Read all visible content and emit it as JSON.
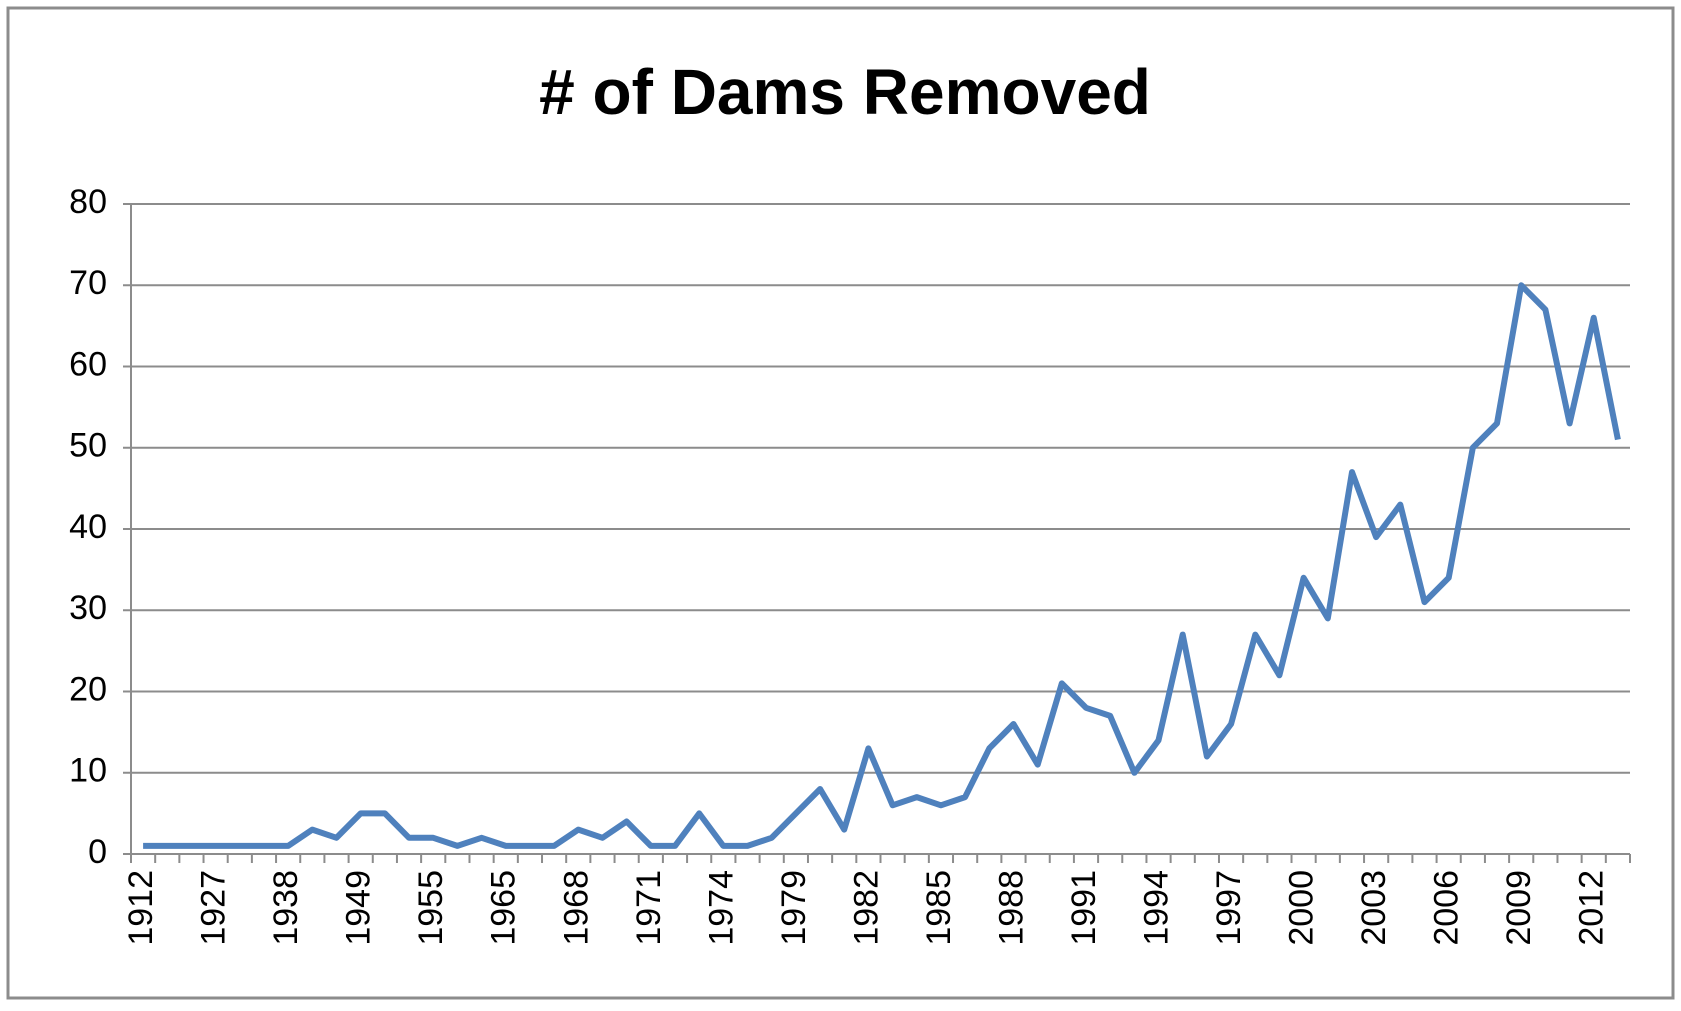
{
  "chart_data": {
    "type": "line",
    "title": "# of Dams Removed",
    "categories": [
      "1912",
      null,
      null,
      "1927",
      null,
      null,
      "1938",
      null,
      null,
      "1949",
      null,
      null,
      "1955",
      null,
      null,
      "1965",
      null,
      null,
      "1968",
      null,
      null,
      "1971",
      null,
      null,
      "1974",
      null,
      null,
      "1979",
      null,
      null,
      "1982",
      null,
      null,
      "1985",
      null,
      null,
      "1988",
      null,
      null,
      "1991",
      null,
      null,
      "1994",
      null,
      null,
      "1997",
      null,
      null,
      "2000",
      null,
      null,
      "2003",
      null,
      null,
      "2006",
      null,
      null,
      "2009",
      null,
      null,
      "2012",
      null
    ],
    "series": [
      {
        "name": "# of Dams Removed",
        "color": "#4f81bd",
        "values": [
          1,
          1,
          1,
          1,
          1,
          1,
          1,
          3,
          2,
          5,
          5,
          2,
          2,
          1,
          2,
          1,
          1,
          1,
          3,
          2,
          4,
          1,
          1,
          5,
          1,
          1,
          2,
          5,
          8,
          3,
          13,
          6,
          7,
          6,
          7,
          13,
          16,
          11,
          21,
          18,
          17,
          10,
          14,
          27,
          12,
          16,
          27,
          22,
          34,
          29,
          47,
          39,
          43,
          31,
          34,
          50,
          53,
          70,
          67,
          53,
          66,
          51
        ]
      }
    ],
    "ylim": [
      0,
      80
    ],
    "yticks": [
      0,
      10,
      20,
      30,
      40,
      50,
      60,
      70,
      80
    ],
    "grid": true
  }
}
